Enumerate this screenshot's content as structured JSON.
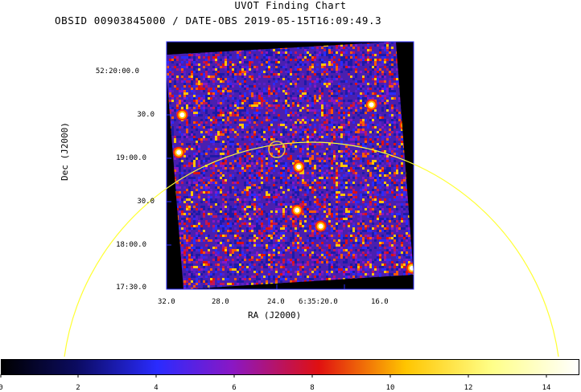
{
  "title": "UVOT Finding Chart",
  "subtitle": "OBSID 00903845000 / DATE-OBS 2019-05-15T16:09:49.3",
  "axes": {
    "xlabel": "RA (J2000)",
    "ylabel": "Dec (J2000)",
    "ra_ticks": [
      "32.0",
      "28.0",
      "24.0",
      "6:35:20.0",
      "16.0"
    ],
    "dec_ticks": [
      "52:20:00.0",
      "30.0",
      "19:00.0",
      "30.0",
      "18:00.0",
      "17:30.0"
    ]
  },
  "colorbar": {
    "min": 0,
    "max": 15,
    "ticks": [
      "0",
      "2",
      "4",
      "6",
      "8",
      "10",
      "12",
      "14"
    ],
    "colormap": [
      "#000000",
      "#0b0b60",
      "#2a2bff",
      "#8a17c4",
      "#e01010",
      "#ffc500",
      "#ffff88",
      "#ffffff"
    ]
  },
  "overlay": {
    "target_circle_color": "#e6c83a",
    "fov_arc_color": "#ffff33"
  },
  "bright_sources": [
    {
      "ra": "6:35:29.6",
      "dec": "52:19:30"
    },
    {
      "ra": "6:35:18.4",
      "dec": "52:19:37"
    },
    {
      "ra": "6:35:16.4",
      "dec": "52:19:23"
    },
    {
      "ra": "6:35:29.8",
      "dec": "52:19:04"
    },
    {
      "ra": "6:35:22.7",
      "dec": "52:18:54"
    },
    {
      "ra": "6:35:22.8",
      "dec": "52:18:24"
    },
    {
      "ra": "6:35:21.4",
      "dec": "52:18:13"
    },
    {
      "ra": "6:35:31.0",
      "dec": "52:17:57"
    },
    {
      "ra": "6:35:31.2",
      "dec": "52:17:47"
    },
    {
      "ra": "6:35:16.0",
      "dec": "52:17:44"
    }
  ]
}
